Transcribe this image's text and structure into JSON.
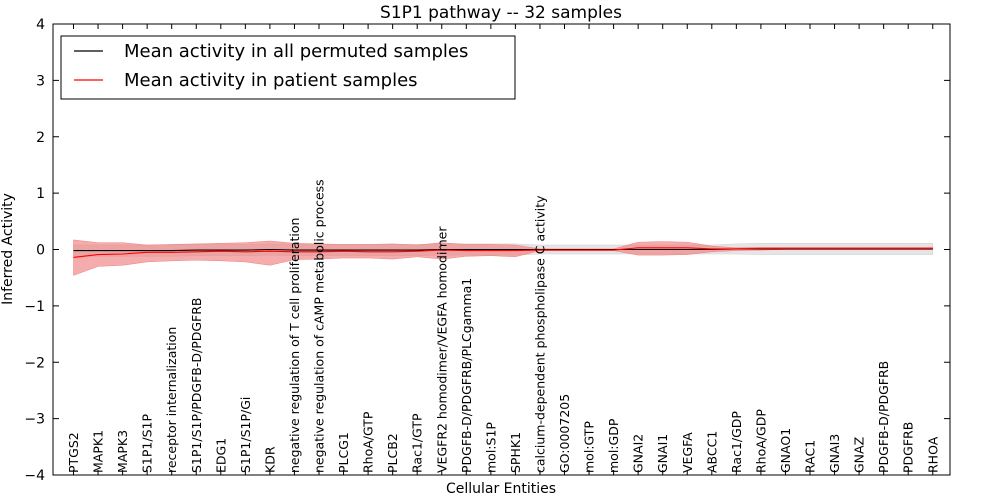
{
  "chart_data": {
    "type": "line",
    "title": "S1P1 pathway -- 32 samples",
    "xlabel": "Cellular Entities",
    "ylabel": "Inferred Activity",
    "ylim": [
      -4,
      4
    ],
    "yticks": [
      -4,
      -3,
      -2,
      -1,
      0,
      1,
      2,
      3,
      4
    ],
    "ytick_labels": [
      "−4",
      "−3",
      "−2",
      "−1",
      "0",
      "1",
      "2",
      "3",
      "4"
    ],
    "legend_placement": "top-left",
    "categories": [
      "PTGS2",
      "MAPK1",
      "MAPK3",
      "S1P1/S1P",
      "receptor internalization",
      "S1P1/S1P/PDGFB-D/PDGFRB",
      "EDG1",
      "S1P1/S1P/Gi",
      "KDR",
      "negative regulation of T cell proliferation",
      "negative regulation of cAMP metabolic process",
      "PLCG1",
      "RhoA/GTP",
      "PLCB2",
      "Rac1/GTP",
      "VEGFR2 homodimer/VEGFA homodimer",
      "PDGFB-D/PDGFRB/PLCgamma1",
      "mol:S1P",
      "SPHK1",
      "calcium-dependent phospholipase C activity",
      "GO:0007205",
      "mol:GTP",
      "mol:GDP",
      "GNAI2",
      "GNAI1",
      "VEGFA",
      "ABCC1",
      "Rac1/GDP",
      "RhoA/GDP",
      "GNAO1",
      "RAC1",
      "GNAI3",
      "GNAZ",
      "PDGFB-D/PDGFRB",
      "PDGFRB",
      "RHOA"
    ],
    "series": [
      {
        "name": "Mean activity in all permuted samples",
        "color": "#000000",
        "band_color": "#cfcfcf",
        "values": [
          -0.02,
          -0.02,
          -0.02,
          -0.02,
          -0.02,
          -0.01,
          -0.01,
          -0.01,
          0.0,
          -0.01,
          -0.01,
          -0.01,
          -0.01,
          -0.01,
          -0.01,
          0.0,
          0.0,
          0.0,
          0.0,
          0.0,
          0.0,
          0.0,
          0.0,
          0.0,
          0.0,
          0.0,
          0.0,
          0.01,
          0.01,
          0.01,
          0.01,
          0.01,
          0.01,
          0.01,
          0.01,
          0.01
        ],
        "lower": [
          -0.12,
          -0.12,
          -0.12,
          -0.12,
          -0.12,
          -0.11,
          -0.11,
          -0.11,
          -0.1,
          -0.11,
          -0.11,
          -0.11,
          -0.11,
          -0.11,
          -0.11,
          -0.1,
          -0.1,
          -0.1,
          -0.1,
          -0.08,
          -0.08,
          -0.08,
          -0.08,
          -0.08,
          -0.08,
          -0.08,
          -0.08,
          -0.08,
          -0.09,
          -0.09,
          -0.09,
          -0.09,
          -0.09,
          -0.09,
          -0.09,
          -0.09
        ],
        "upper": [
          0.08,
          0.08,
          0.08,
          0.08,
          0.08,
          0.09,
          0.09,
          0.09,
          0.1,
          0.09,
          0.09,
          0.09,
          0.09,
          0.09,
          0.09,
          0.1,
          0.1,
          0.1,
          0.1,
          0.08,
          0.08,
          0.08,
          0.08,
          0.08,
          0.08,
          0.08,
          0.08,
          0.1,
          0.11,
          0.11,
          0.11,
          0.11,
          0.11,
          0.11,
          0.11,
          0.11
        ]
      },
      {
        "name": "Mean activity in patient samples",
        "color": "#ff0000",
        "band_color": "#f08080",
        "values": [
          -0.14,
          -0.09,
          -0.08,
          -0.05,
          -0.05,
          -0.04,
          -0.03,
          -0.04,
          -0.03,
          -0.04,
          -0.04,
          -0.03,
          -0.04,
          -0.04,
          -0.03,
          -0.01,
          -0.02,
          -0.02,
          -0.02,
          -0.01,
          -0.01,
          -0.01,
          -0.01,
          0.03,
          0.03,
          0.03,
          0.01,
          0.01,
          0.02,
          0.02,
          0.02,
          0.02,
          0.02,
          0.02,
          0.02,
          0.02
        ],
        "lower": [
          -0.46,
          -0.3,
          -0.28,
          -0.22,
          -0.2,
          -0.19,
          -0.2,
          -0.22,
          -0.28,
          -0.18,
          -0.17,
          -0.15,
          -0.15,
          -0.17,
          -0.13,
          -0.17,
          -0.12,
          -0.11,
          -0.13,
          -0.02,
          -0.02,
          -0.02,
          -0.02,
          -0.1,
          -0.1,
          -0.09,
          -0.04,
          -0.02,
          -0.01,
          0.0,
          0.0,
          0.0,
          0.0,
          0.0,
          0.0,
          0.0
        ],
        "upper": [
          0.17,
          0.12,
          0.12,
          0.08,
          0.09,
          0.1,
          0.11,
          0.12,
          0.15,
          0.11,
          0.1,
          0.09,
          0.09,
          0.1,
          0.08,
          0.12,
          0.09,
          0.09,
          0.08,
          0.01,
          0.01,
          0.01,
          0.01,
          0.13,
          0.14,
          0.13,
          0.06,
          0.03,
          0.04,
          0.04,
          0.04,
          0.04,
          0.04,
          0.04,
          0.04,
          0.04
        ]
      }
    ]
  }
}
